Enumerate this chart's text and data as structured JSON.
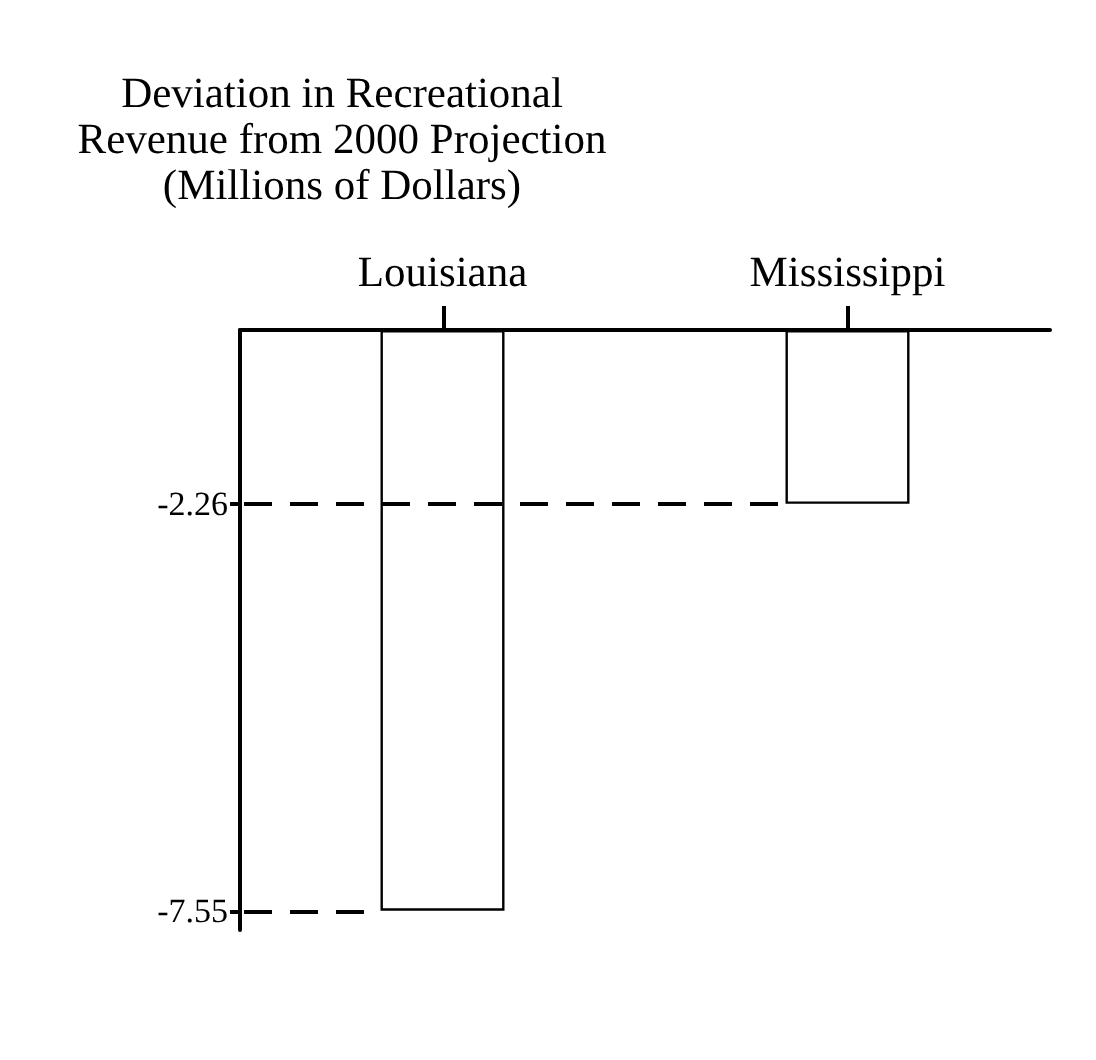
{
  "chart_data": {
    "type": "bar",
    "ylabel": "Deviation in Recreational Revenue from 2000 Projection (Millions of Dollars)",
    "categories": [
      "Louisiana",
      "Mississippi"
    ],
    "values": [
      -7.55,
      -2.26
    ],
    "color": "#ffffff",
    "ylim": [
      -7.8,
      0
    ],
    "yticks": [
      -7.55,
      -2.26
    ],
    "ref_lines": [
      {
        "axis": "y",
        "value": -2.26,
        "line_style": "dashed",
        "color": "#000000"
      },
      {
        "axis": "y",
        "value": -7.55,
        "line_style": "dashed",
        "color": "#000000"
      }
    ]
  }
}
